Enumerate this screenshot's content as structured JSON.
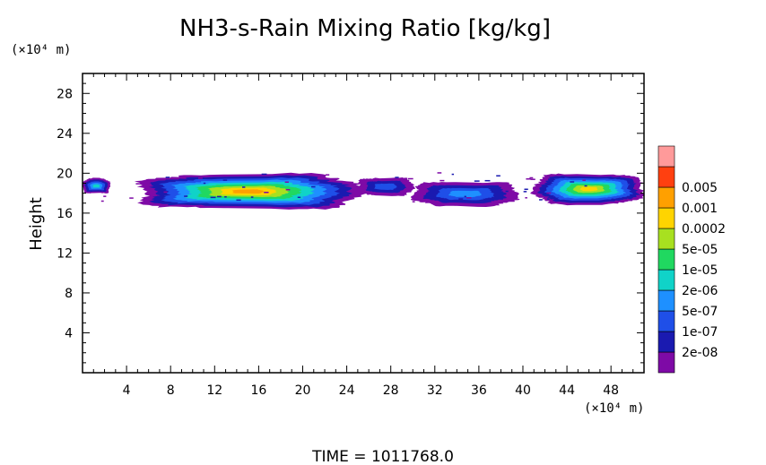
{
  "chart_data": {
    "type": "heatmap",
    "title": "NH3-s-Rain Mixing Ratio [kg/kg]",
    "xlabel": "",
    "ylabel": "Height",
    "x_unit": "(×10⁴ m)",
    "y_unit": "(×10⁴ m)",
    "xlim": [
      0,
      51
    ],
    "ylim": [
      0,
      30
    ],
    "x_ticks": [
      4,
      8,
      12,
      16,
      20,
      24,
      28,
      32,
      36,
      40,
      44,
      48
    ],
    "y_ticks": [
      4,
      8,
      12,
      16,
      20,
      24,
      28
    ],
    "grid": false,
    "legend_position": "right",
    "levels": [
      "2e-08",
      "1e-07",
      "5e-07",
      "2e-06",
      "1e-05",
      "5e-05",
      "0.0002",
      "0.001",
      "0.005"
    ],
    "level_colors": [
      "#7e0aa6",
      "#1a1ab0",
      "#1f4fe8",
      "#1e90ff",
      "#10d3c8",
      "#20d860",
      "#a8e020",
      "#ffd400",
      "#ffa000",
      "#ff4010",
      "#ff9a9a"
    ],
    "regions": [
      {
        "x": [
          0,
          2.5
        ],
        "y": [
          18,
          19.5
        ],
        "max_level": 4
      },
      {
        "x": [
          5,
          25
        ],
        "y": [
          16.5,
          20
        ],
        "max_level": 8
      },
      {
        "x": [
          25,
          30
        ],
        "y": [
          17.8,
          19.6
        ],
        "max_level": 2
      },
      {
        "x": [
          30,
          39.5
        ],
        "y": [
          16.8,
          19.2
        ],
        "max_level": 3
      },
      {
        "x": [
          41,
          51
        ],
        "y": [
          17,
          20
        ],
        "max_level": 7
      }
    ],
    "footer": "TIME  =  1011768.0"
  }
}
